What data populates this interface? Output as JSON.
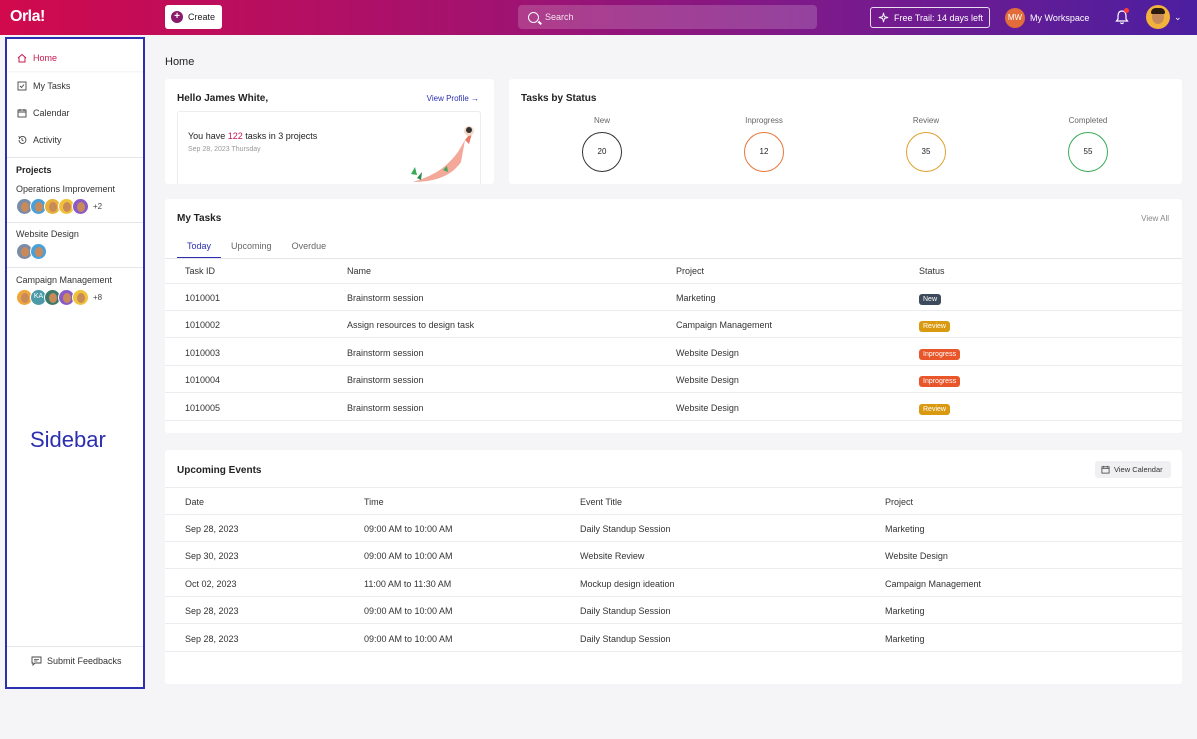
{
  "topbar": {
    "logo": "Orla!",
    "create_label": "Create",
    "search_placeholder": "Search",
    "trial_label": "Free Trail: 14 days left",
    "workspace_initials": "MW",
    "workspace_label": "My Workspace"
  },
  "sidebar": {
    "nav": [
      {
        "label": "Home",
        "icon": "home-icon"
      },
      {
        "label": "My Tasks",
        "icon": "checkbox-icon"
      },
      {
        "label": "Calendar",
        "icon": "calendar-icon"
      },
      {
        "label": "Activity",
        "icon": "history-icon"
      }
    ],
    "projects_heading": "Projects",
    "projects": [
      {
        "name": "Operations Improvement",
        "more": "+2"
      },
      {
        "name": "Website Design",
        "more": ""
      },
      {
        "name": "Campaign Management",
        "more": "+8",
        "initials": "KA"
      }
    ],
    "annotation": "Sidebar",
    "feedback_label": "Submit Feedbacks"
  },
  "page_title": "Home",
  "hello": {
    "greeting": "Hello James White,",
    "view_profile": "View Profile →",
    "tasks_prefix": "You have ",
    "tasks_count": "122",
    "tasks_suffix": " tasks in 3 projects",
    "date": "Sep 28, 2023 Thursday"
  },
  "status": {
    "title": "Tasks by Status",
    "items": [
      {
        "label": "New",
        "value": "20",
        "color": "#333333"
      },
      {
        "label": "Inprogress",
        "value": "12",
        "color": "#e8763a"
      },
      {
        "label": "Review",
        "value": "35",
        "color": "#e0a030"
      },
      {
        "label": "Completed",
        "value": "55",
        "color": "#3aaa5a"
      }
    ]
  },
  "my_tasks": {
    "title": "My Tasks",
    "view_all": "View All",
    "tabs": [
      "Today",
      "Upcoming",
      "Overdue"
    ],
    "headers": [
      "Task ID",
      "Name",
      "Project",
      "Status"
    ],
    "rows": [
      {
        "id": "1010001",
        "name": "Brainstorm session",
        "project": "Marketing",
        "status": "New"
      },
      {
        "id": "1010002",
        "name": "Assign resources to design task",
        "project": "Campaign Management",
        "status": "Review"
      },
      {
        "id": "1010003",
        "name": "Brainstorm session",
        "project": "Website Design",
        "status": "Inprogress"
      },
      {
        "id": "1010004",
        "name": "Brainstorm session",
        "project": "Website Design",
        "status": "Inprogress"
      },
      {
        "id": "1010005",
        "name": "Brainstorm session",
        "project": "Website Design",
        "status": "Review"
      }
    ],
    "status_colors": {
      "New": "#3d4a5c",
      "Review": "#d99a12",
      "Inprogress": "#e8562a"
    }
  },
  "events": {
    "title": "Upcoming Events",
    "view_calendar": "View Calendar",
    "headers": [
      "Date",
      "Time",
      "Event Title",
      "Project"
    ],
    "rows": [
      {
        "date": "Sep 28, 2023",
        "time": "09:00 AM to 10:00 AM",
        "title": "Daily Standup Session",
        "project": "Marketing"
      },
      {
        "date": "Sep 30, 2023",
        "time": "09:00 AM to 10:00 AM",
        "title": "Website Review",
        "project": "Website Design"
      },
      {
        "date": "Oct 02, 2023",
        "time": "11:00 AM to 11:30 AM",
        "title": "Mockup design ideation",
        "project": "Campaign Management"
      },
      {
        "date": "Sep 28, 2023",
        "time": "09:00 AM to 10:00 AM",
        "title": "Daily Standup Session",
        "project": "Marketing"
      },
      {
        "date": "Sep 28, 2023",
        "time": "09:00 AM to 10:00 AM",
        "title": "Daily Standup Session",
        "project": "Marketing"
      }
    ]
  }
}
